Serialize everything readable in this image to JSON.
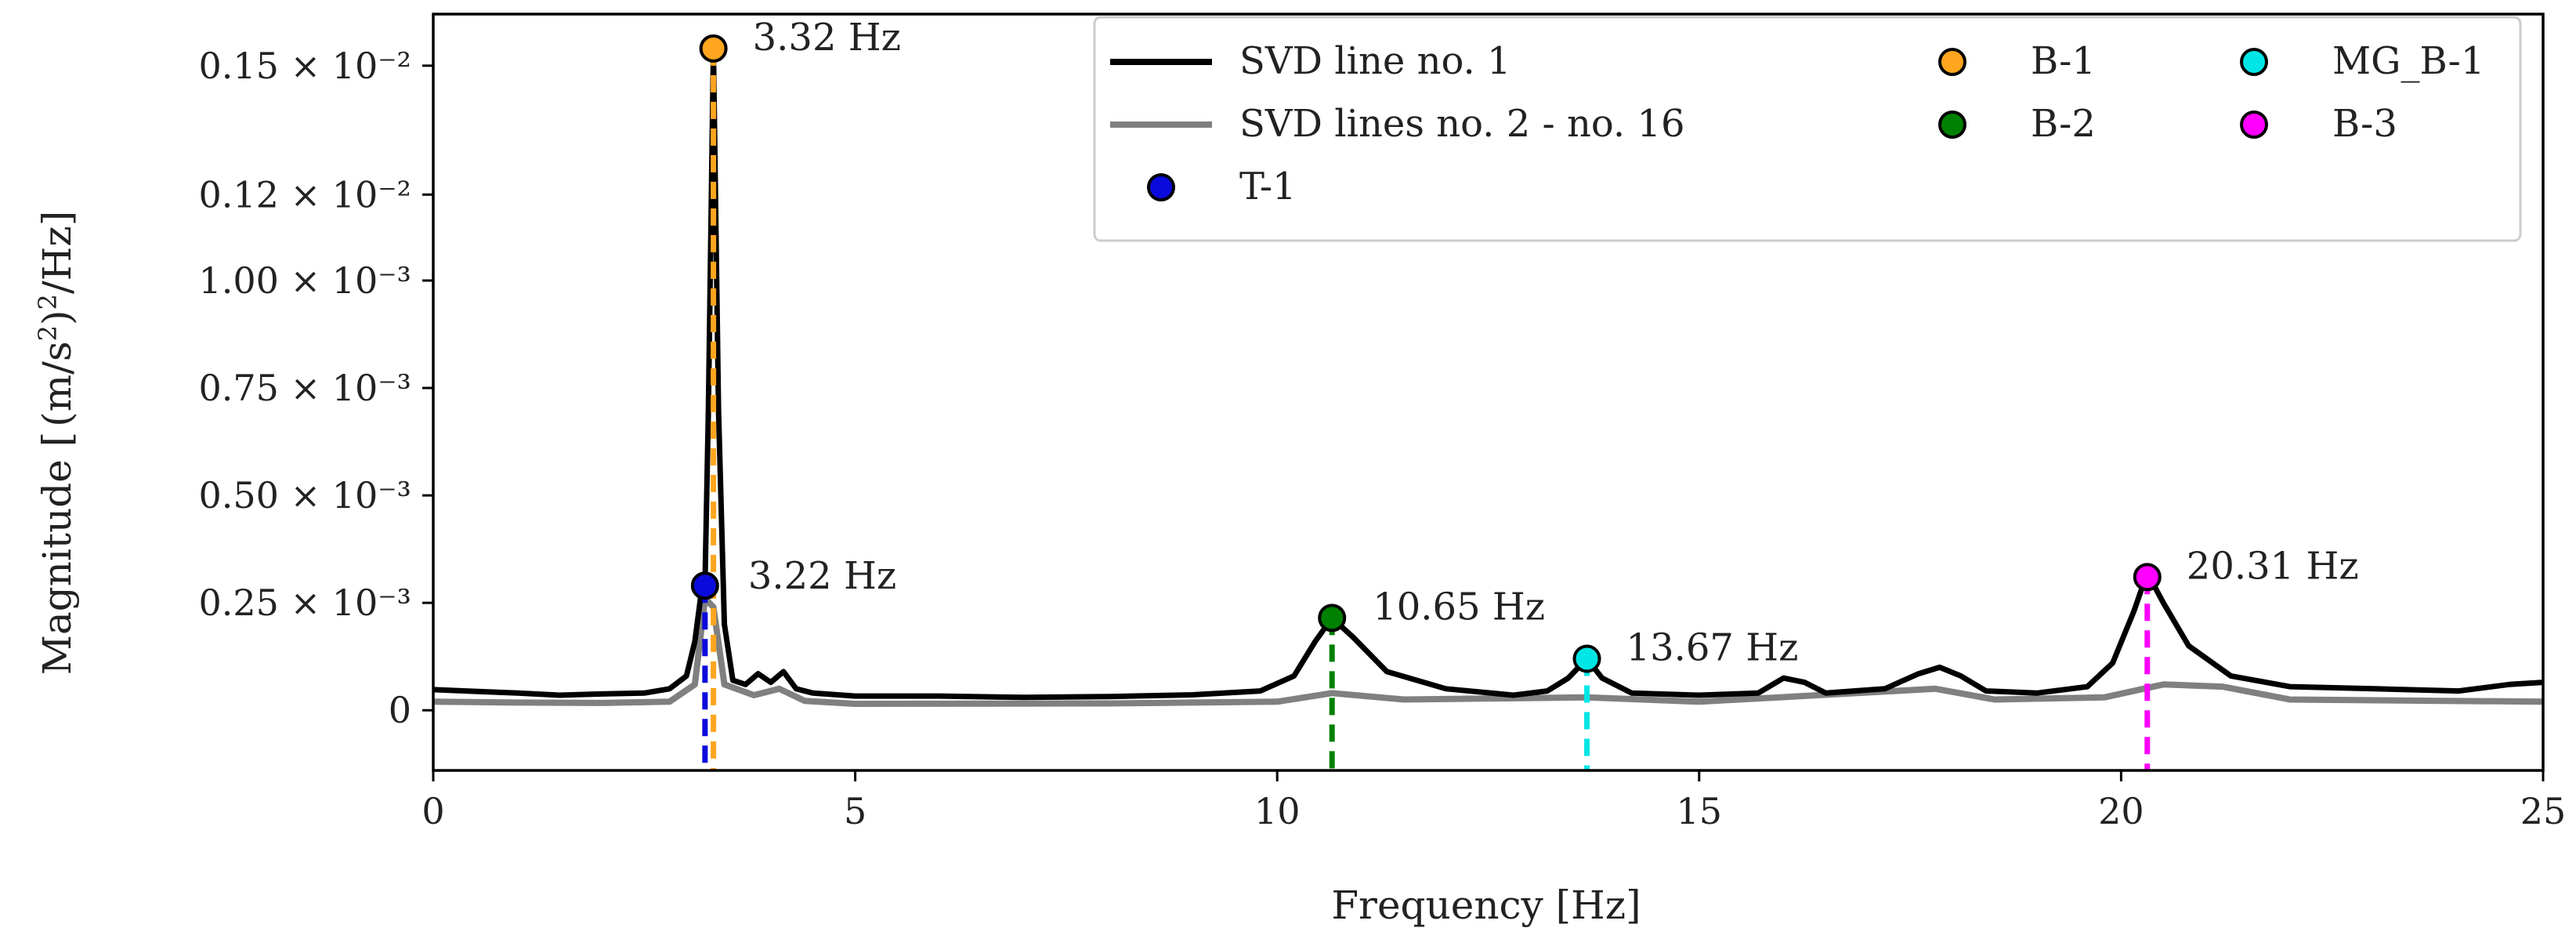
{
  "colors": {
    "svd1": "#000000",
    "svd_rest": "#808080",
    "T-1": "#0a0adc",
    "B-1": "#ffa51e",
    "B-2": "#008000",
    "MG_B-1": "#00e5e5",
    "B-3": "#ff00ff"
  },
  "chart_data": {
    "type": "line",
    "title": "",
    "xlabel": "Frequency [Hz]",
    "ylabel": "Magnitude [((m/s²)²/Hz)]",
    "xlim": [
      0,
      25
    ],
    "ylim": [
      -0.00014,
      0.00162
    ],
    "x_ticks": [
      {
        "value": 0,
        "label": "0"
      },
      {
        "value": 5,
        "label": "5"
      },
      {
        "value": 10,
        "label": "10"
      },
      {
        "value": 15,
        "label": "15"
      },
      {
        "value": 20,
        "label": "20"
      },
      {
        "value": 25,
        "label": "25"
      }
    ],
    "y_ticks": [
      {
        "value": 0,
        "label": "0"
      },
      {
        "value": 0.00025,
        "label": "0.25 × 10⁻³"
      },
      {
        "value": 0.0005,
        "label": "0.50 × 10⁻³"
      },
      {
        "value": 0.00075,
        "label": "0.75 × 10⁻³"
      },
      {
        "value": 0.001,
        "label": "1.00 × 10⁻³"
      },
      {
        "value": 0.0012,
        "label": "0.12 × 10⁻²"
      },
      {
        "value": 0.0015,
        "label": "0.15 × 10⁻²"
      }
    ],
    "series": [
      {
        "name": "SVD line no. 1",
        "color": "#000000",
        "points": [
          [
            0,
            4.8e-05
          ],
          [
            0.5,
            4.4e-05
          ],
          [
            1,
            4e-05
          ],
          [
            1.5,
            3.5e-05
          ],
          [
            2,
            3.8e-05
          ],
          [
            2.5,
            4e-05
          ],
          [
            2.8,
            5e-05
          ],
          [
            3.0,
            8e-05
          ],
          [
            3.1,
            0.00016
          ],
          [
            3.18,
            0.00028
          ],
          [
            3.22,
            0.0003
          ],
          [
            3.26,
            0.0007
          ],
          [
            3.32,
            0.00154
          ],
          [
            3.38,
            0.0007
          ],
          [
            3.45,
            0.0002
          ],
          [
            3.55,
            7e-05
          ],
          [
            3.7,
            6e-05
          ],
          [
            3.85,
            8.5e-05
          ],
          [
            4.0,
            6.5e-05
          ],
          [
            4.15,
            9e-05
          ],
          [
            4.3,
            5e-05
          ],
          [
            4.5,
            4e-05
          ],
          [
            5,
            3.3e-05
          ],
          [
            6,
            3.3e-05
          ],
          [
            7,
            3e-05
          ],
          [
            8,
            3.2e-05
          ],
          [
            9,
            3.6e-05
          ],
          [
            9.8,
            4.5e-05
          ],
          [
            10.2,
            8e-05
          ],
          [
            10.45,
            0.00016
          ],
          [
            10.65,
            0.000215
          ],
          [
            10.9,
            0.00017
          ],
          [
            11.3,
            9e-05
          ],
          [
            12,
            5e-05
          ],
          [
            12.8,
            3.5e-05
          ],
          [
            13.2,
            4.5e-05
          ],
          [
            13.45,
            7.5e-05
          ],
          [
            13.67,
            0.00012
          ],
          [
            13.85,
            7.5e-05
          ],
          [
            14.2,
            4e-05
          ],
          [
            15,
            3.5e-05
          ],
          [
            15.7,
            4e-05
          ],
          [
            16.0,
            7.5e-05
          ],
          [
            16.25,
            6.5e-05
          ],
          [
            16.5,
            4e-05
          ],
          [
            17.2,
            5e-05
          ],
          [
            17.6,
            8.5e-05
          ],
          [
            17.85,
            0.0001
          ],
          [
            18.1,
            8e-05
          ],
          [
            18.4,
            4.5e-05
          ],
          [
            19,
            4e-05
          ],
          [
            19.6,
            5.5e-05
          ],
          [
            19.9,
            0.00011
          ],
          [
            20.15,
            0.00023
          ],
          [
            20.31,
            0.00032
          ],
          [
            20.5,
            0.00025
          ],
          [
            20.8,
            0.00015
          ],
          [
            21.3,
            8e-05
          ],
          [
            22,
            5.5e-05
          ],
          [
            23,
            5e-05
          ],
          [
            24,
            4.5e-05
          ],
          [
            24.6,
            6e-05
          ],
          [
            25,
            6.5e-05
          ]
        ]
      },
      {
        "name": "SVD lines no. 2 - no. 16",
        "color": "#808080",
        "points": [
          [
            0,
            2e-05
          ],
          [
            1,
            1.8e-05
          ],
          [
            2,
            1.7e-05
          ],
          [
            2.8,
            2e-05
          ],
          [
            3.1,
            6e-05
          ],
          [
            3.22,
            0.00026
          ],
          [
            3.32,
            0.00024
          ],
          [
            3.45,
            6e-05
          ],
          [
            3.8,
            3.5e-05
          ],
          [
            4.1,
            5e-05
          ],
          [
            4.4,
            2.2e-05
          ],
          [
            5,
            1.5e-05
          ],
          [
            8,
            1.6e-05
          ],
          [
            10,
            2e-05
          ],
          [
            10.65,
            4e-05
          ],
          [
            11.5,
            2.5e-05
          ],
          [
            13.67,
            3e-05
          ],
          [
            15,
            2e-05
          ],
          [
            17.8,
            5e-05
          ],
          [
            18.5,
            2.5e-05
          ],
          [
            19.8,
            3e-05
          ],
          [
            20.5,
            6e-05
          ],
          [
            21.2,
            5.5e-05
          ],
          [
            22,
            2.5e-05
          ],
          [
            25,
            2e-05
          ]
        ]
      }
    ],
    "markers": [
      {
        "name": "T-1",
        "x": 3.22,
        "y": 0.00029,
        "color": "#0a0adc",
        "label": "3.22 Hz"
      },
      {
        "name": "B-1",
        "x": 3.32,
        "y": 0.00154,
        "color": "#ffa51e",
        "label": "3.32 Hz"
      },
      {
        "name": "B-2",
        "x": 10.65,
        "y": 0.000215,
        "color": "#008000",
        "label": "10.65 Hz"
      },
      {
        "name": "MG_B-1",
        "x": 13.67,
        "y": 0.00012,
        "color": "#00e5e5",
        "label": "13.67 Hz"
      },
      {
        "name": "B-3",
        "x": 20.31,
        "y": 0.00031,
        "color": "#ff00ff",
        "label": "20.31 Hz"
      }
    ],
    "legend": {
      "position": "top-right",
      "entries": [
        {
          "label": "SVD line no. 1",
          "kind": "line",
          "color": "#000000"
        },
        {
          "label": "SVD lines no. 2 - no. 16",
          "kind": "line",
          "color": "#808080"
        },
        {
          "label": "T-1",
          "kind": "marker",
          "color": "#0a0adc"
        },
        {
          "label": "B-1",
          "kind": "marker",
          "color": "#ffa51e"
        },
        {
          "label": "B-2",
          "kind": "marker",
          "color": "#008000"
        },
        {
          "label": "MG_B-1",
          "kind": "marker",
          "color": "#00e5e5"
        },
        {
          "label": "B-3",
          "kind": "marker",
          "color": "#ff00ff"
        }
      ]
    }
  }
}
